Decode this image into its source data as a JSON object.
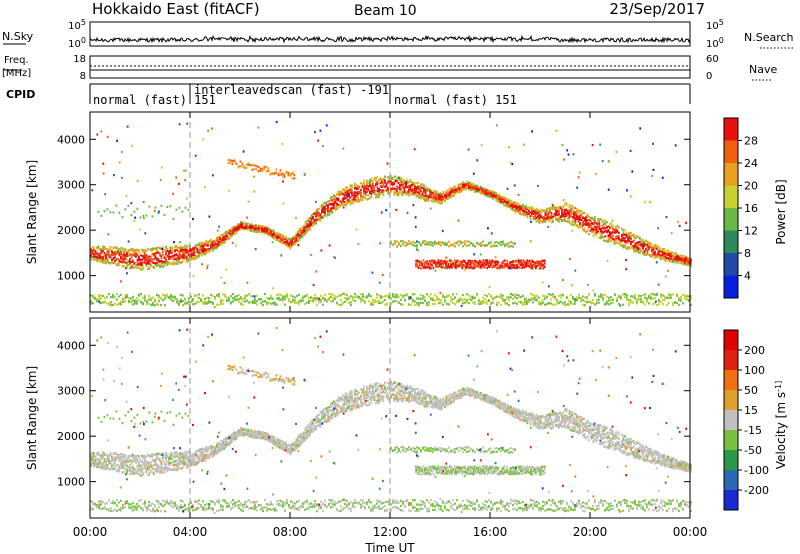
{
  "header": {
    "title": "Hokkaido East (fitACF)",
    "beam": "Beam 10",
    "date": "23/Sep/2017"
  },
  "strip": {
    "nsky_label": "N.Sky",
    "nsky_ticks": [
      "10^5",
      "10^0"
    ],
    "nsearch_label": "N.Search",
    "nsearch_ticks": [
      "10^5",
      "10^0"
    ],
    "freq_label_1": "Freq.",
    "freq_label_2": "[MHz]",
    "freq_ticks": [
      "18",
      "8"
    ],
    "nave_label": "Nave",
    "nave_ticks": [
      "60",
      "0"
    ],
    "cpid_label": "CPID",
    "segments": [
      {
        "label": "normal (fast)  151",
        "start_hour": 0
      },
      {
        "label": "interleavedscan (fast)  -191",
        "start_hour": 4
      },
      {
        "label": "normal (fast)  151",
        "start_hour": 12
      }
    ]
  },
  "chart_data": [
    {
      "type": "heatmap",
      "name": "power-panel",
      "ylabel": "Slant Range [km]",
      "xlim": [
        0,
        24
      ],
      "ylim": [
        200,
        4600
      ],
      "yticks": [
        1000,
        2000,
        3000,
        4000
      ],
      "colorbar": {
        "label": "Power [dB]",
        "ticks": [
          "4",
          "8",
          "12",
          "16",
          "20",
          "24",
          "28"
        ],
        "colors": [
          "#0a1ee0",
          "#1f4aa8",
          "#2e8a5a",
          "#69b848",
          "#c8d030",
          "#e8a020",
          "#ee6010",
          "#e81010"
        ]
      }
    },
    {
      "type": "heatmap",
      "name": "velocity-panel",
      "ylabel": "Slant Range [km]",
      "xlabel": "Time UT",
      "xlim": [
        0,
        24
      ],
      "ylim": [
        200,
        4600
      ],
      "yticks": [
        1000,
        2000,
        3000,
        4000
      ],
      "xticks": [
        "00:00",
        "04:00",
        "08:00",
        "12:00",
        "16:00",
        "20:00",
        "00:00"
      ],
      "colorbar": {
        "label": "Velocity [m s^-1]",
        "ticks": [
          "200",
          "100",
          "50",
          "15",
          "-15",
          "-50",
          "-100",
          "-200"
        ],
        "colors": [
          "#1a2ad0",
          "#2a6ab0",
          "#2a9a4a",
          "#7ac040",
          "#c0c0c0",
          "#e0a030",
          "#ee7010",
          "#e02010",
          "#e00000"
        ]
      }
    }
  ]
}
